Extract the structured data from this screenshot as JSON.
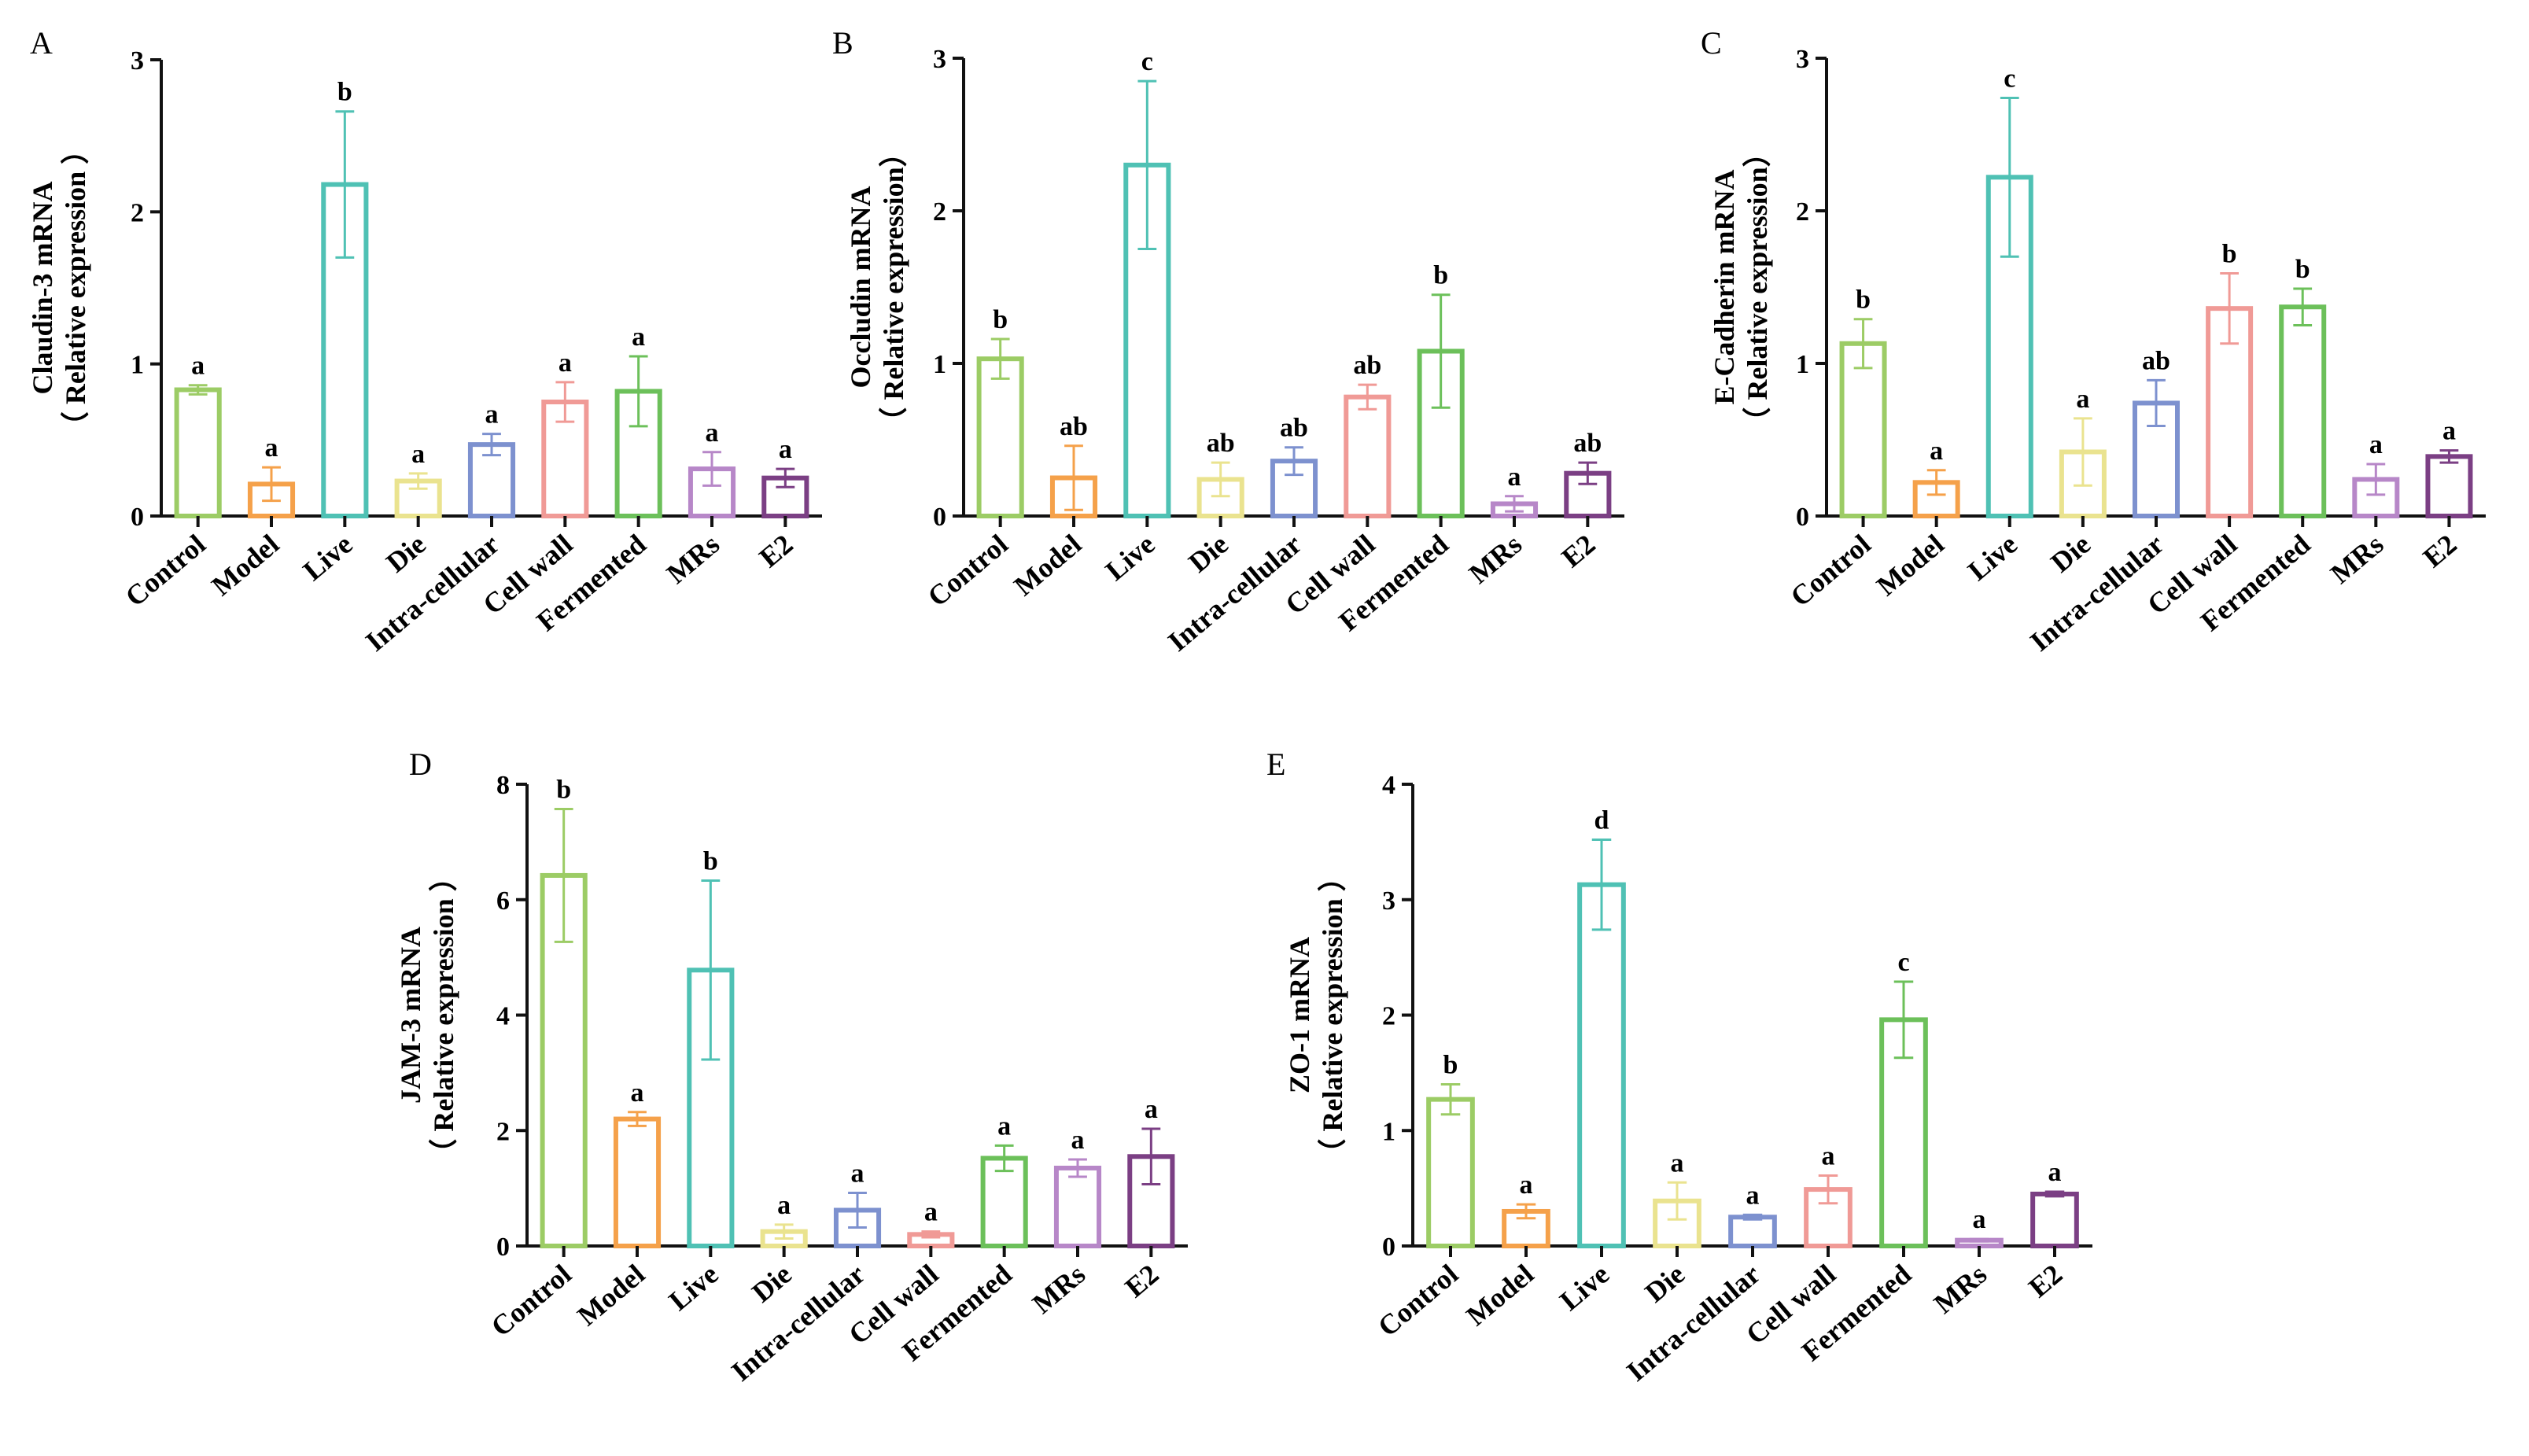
{
  "figure": {
    "panels": [
      "A",
      "B",
      "C",
      "D",
      "E"
    ]
  },
  "colors": {
    "Control": "#9ccc65",
    "Model": "#f5a14a",
    "Live": "#4fc1b4",
    "Die": "#eae38f",
    "Intra-cellular": "#7d91cf",
    "Cell wall": "#f09a96",
    "Fermented": "#6cc05a",
    "MRs": "#b787c8",
    "E2": "#7b3f84"
  },
  "chart_data": [
    {
      "type": "bar",
      "panel": "A",
      "title": "",
      "ylabel_line1": "Claudin-3 mRNA",
      "ylabel_line2": "（ Relative expression ）",
      "xlabel": "",
      "ylim": [
        0,
        3
      ],
      "yticks": [
        "0",
        "1",
        "2",
        "3"
      ],
      "categories": [
        "Control",
        "Model",
        "Live",
        "Die",
        "Intra-cellular",
        "Cell wall",
        "Fermented",
        "MRs",
        "E2"
      ],
      "values": [
        0.83,
        0.21,
        2.18,
        0.23,
        0.47,
        0.75,
        0.82,
        0.31,
        0.25
      ],
      "errors": [
        0.03,
        0.11,
        0.48,
        0.05,
        0.07,
        0.13,
        0.23,
        0.11,
        0.06
      ],
      "significance": [
        "a",
        "a",
        "b",
        "a",
        "a",
        "a",
        "a",
        "a",
        "a"
      ]
    },
    {
      "type": "bar",
      "panel": "B",
      "title": "",
      "ylabel_line1": "Occludin mRNA",
      "ylabel_line2": "（ Relative expression）",
      "xlabel": "",
      "ylim": [
        0,
        3
      ],
      "yticks": [
        "0",
        "1",
        "2",
        "3"
      ],
      "categories": [
        "Control",
        "Model",
        "Live",
        "Die",
        "Intra-cellular",
        "Cell wall",
        "Fermented",
        "MRs",
        "E2"
      ],
      "values": [
        1.03,
        0.25,
        2.3,
        0.24,
        0.36,
        0.78,
        1.08,
        0.08,
        0.28
      ],
      "errors": [
        0.13,
        0.21,
        0.55,
        0.11,
        0.09,
        0.08,
        0.37,
        0.05,
        0.07
      ],
      "significance": [
        "b",
        "ab",
        "c",
        "ab",
        "ab",
        "ab",
        "b",
        "a",
        "ab"
      ]
    },
    {
      "type": "bar",
      "panel": "C",
      "title": "",
      "ylabel_line1": "E-Cadherin mRNA",
      "ylabel_line2": "（ Relative expression）",
      "xlabel": "",
      "ylim": [
        0,
        3
      ],
      "yticks": [
        "0",
        "1",
        "2",
        "3"
      ],
      "categories": [
        "Control",
        "Model",
        "Live",
        "Die",
        "Intra-cellular",
        "Cell wall",
        "Fermented",
        "MRs",
        "E2"
      ],
      "values": [
        1.13,
        0.22,
        2.22,
        0.42,
        0.74,
        1.36,
        1.37,
        0.24,
        0.39
      ],
      "errors": [
        0.16,
        0.08,
        0.52,
        0.22,
        0.15,
        0.23,
        0.12,
        0.1,
        0.04
      ],
      "significance": [
        "b",
        "a",
        "c",
        "a",
        "ab",
        "b",
        "b",
        "a",
        "a"
      ]
    },
    {
      "type": "bar",
      "panel": "D",
      "title": "",
      "ylabel_line1": "JAM-3 mRNA",
      "ylabel_line2": "（ Relative expression ）",
      "xlabel": "",
      "ylim": [
        0,
        8
      ],
      "yticks": [
        "0",
        "2",
        "4",
        "6",
        "8"
      ],
      "categories": [
        "Control",
        "Model",
        "Live",
        "Die",
        "Intra-cellular",
        "Cell wall",
        "Fermented",
        "MRs",
        "E2"
      ],
      "values": [
        6.42,
        2.2,
        4.78,
        0.25,
        0.62,
        0.2,
        1.52,
        1.35,
        1.55
      ],
      "errors": [
        1.15,
        0.12,
        1.55,
        0.12,
        0.3,
        0.05,
        0.22,
        0.15,
        0.48
      ],
      "significance": [
        "b",
        "a",
        "b",
        "a",
        "a",
        "a",
        "a",
        "a",
        "a"
      ]
    },
    {
      "type": "bar",
      "panel": "E",
      "title": "",
      "ylabel_line1": "ZO-1 mRNA",
      "ylabel_line2": "（ Relative expression ）",
      "xlabel": "",
      "ylim": [
        0,
        4
      ],
      "yticks": [
        "0",
        "1",
        "2",
        "3",
        "4"
      ],
      "categories": [
        "Control",
        "Model",
        "Live",
        "Die",
        "Intra-cellular",
        "Cell wall",
        "Fermented",
        "MRs",
        "E2"
      ],
      "values": [
        1.27,
        0.3,
        3.13,
        0.39,
        0.25,
        0.49,
        1.96,
        0.05,
        0.45
      ],
      "errors": [
        0.13,
        0.06,
        0.39,
        0.16,
        0.02,
        0.12,
        0.33,
        0.01,
        0.02
      ],
      "significance": [
        "b",
        "a",
        "d",
        "a",
        "a",
        "a",
        "c",
        "a",
        "a"
      ]
    }
  ]
}
